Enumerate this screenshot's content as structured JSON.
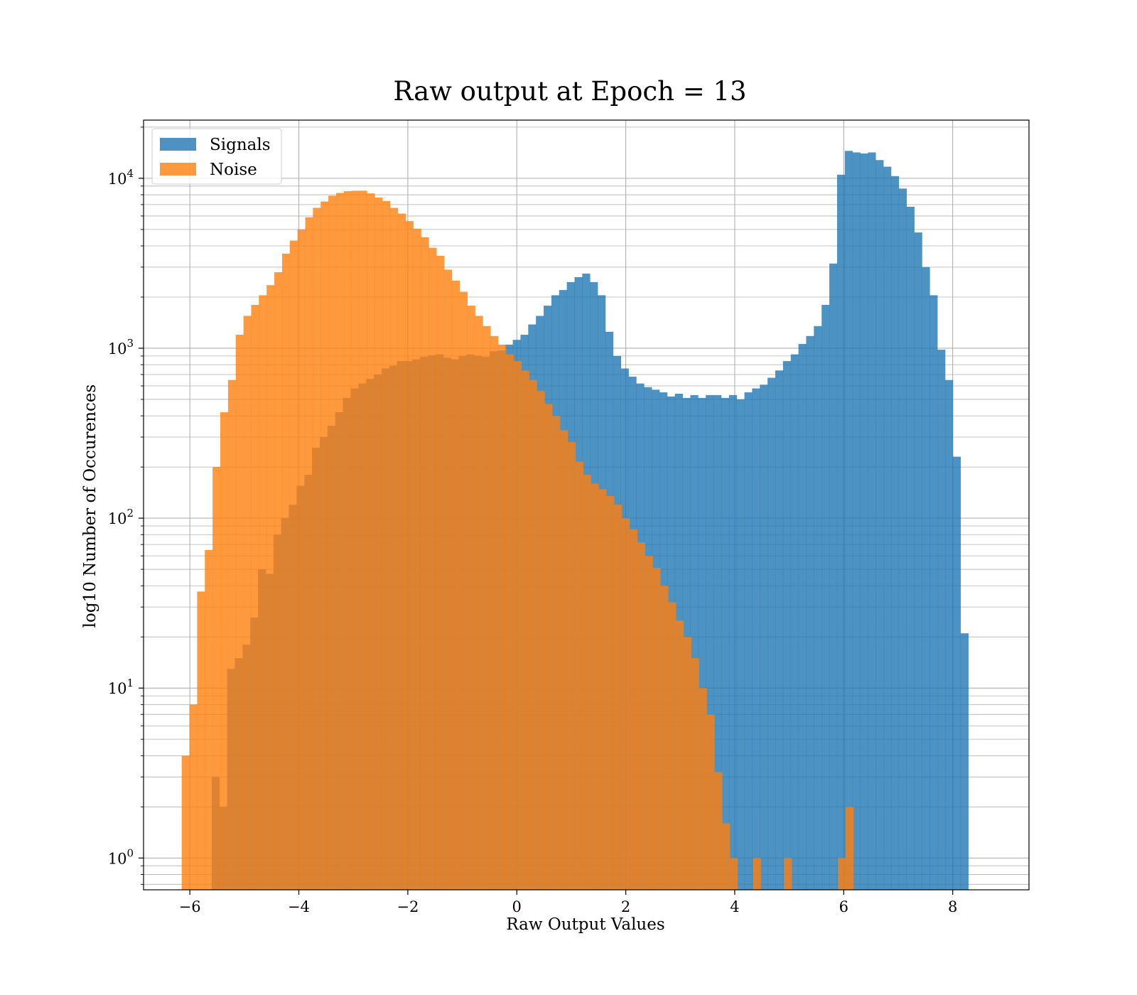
{
  "chart_data": {
    "type": "bar",
    "title": "Raw output at Epoch = 13",
    "xlabel": "Raw Output Values",
    "ylabel": "log10 Number of Occurences",
    "yscale": "log",
    "xlim": [
      -6.85,
      9.4
    ],
    "ylim": [
      0.65,
      22000
    ],
    "x_ticks": [
      -6,
      -4,
      -2,
      0,
      2,
      4,
      6,
      8
    ],
    "x_tick_labels": [
      "−6",
      "−4",
      "−2",
      "0",
      "2",
      "4",
      "6",
      "8"
    ],
    "y_ticks": [
      {
        "value": 1,
        "base": "10",
        "exp": "0"
      },
      {
        "value": 10,
        "base": "10",
        "exp": "1"
      },
      {
        "value": 100,
        "base": "10",
        "exp": "2"
      },
      {
        "value": 1000,
        "base": "10",
        "exp": "3"
      },
      {
        "value": 10000,
        "base": "10",
        "exp": "4"
      }
    ],
    "grid": true,
    "legend_position": "top-left",
    "series": [
      {
        "name": "Signals",
        "color": "#1f77b4",
        "opacity": 0.8,
        "bin_start": -5.6,
        "bin_width": 0.1417,
        "values": [
          3,
          2,
          13,
          15,
          18,
          26,
          50,
          47,
          80,
          100,
          120,
          155,
          180,
          260,
          300,
          350,
          420,
          510,
          580,
          620,
          660,
          700,
          760,
          790,
          840,
          840,
          860,
          890,
          910,
          920,
          880,
          860,
          900,
          920,
          905,
          890,
          960,
          970,
          1050,
          1120,
          1200,
          1380,
          1550,
          1780,
          2050,
          2200,
          2450,
          2620,
          2750,
          2450,
          2050,
          1250,
          900,
          760,
          680,
          620,
          590,
          570,
          550,
          520,
          540,
          510,
          530,
          510,
          530,
          530,
          510,
          530,
          500,
          550,
          580,
          610,
          670,
          740,
          840,
          920,
          1060,
          1180,
          1350,
          1800,
          3150,
          10500,
          14500,
          14200,
          14000,
          14200,
          12800,
          11700,
          10300,
          8700,
          6800,
          4800,
          3000,
          2050,
          980,
          650,
          230,
          21
        ]
      },
      {
        "name": "Noise",
        "color": "#ff7f0e",
        "opacity": 0.8,
        "bin_start": -6.15,
        "bin_width": 0.1417,
        "values": [
          4,
          8,
          37,
          65,
          200,
          420,
          650,
          1200,
          1550,
          1800,
          2050,
          2350,
          2800,
          3600,
          4300,
          5000,
          5900,
          6700,
          7300,
          7900,
          8200,
          8400,
          8450,
          8450,
          8150,
          7700,
          7350,
          6700,
          6200,
          5600,
          5050,
          4500,
          3900,
          3500,
          2900,
          2500,
          2150,
          1780,
          1550,
          1350,
          1180,
          1050,
          920,
          840,
          740,
          650,
          560,
          470,
          400,
          330,
          280,
          215,
          180,
          160,
          148,
          135,
          120,
          100,
          86,
          72,
          60,
          51,
          40,
          32,
          25,
          20,
          15,
          10,
          7,
          3.2,
          1.6,
          1,
          0,
          0,
          1,
          0,
          0,
          0,
          1,
          0,
          0,
          0,
          0,
          0,
          0,
          1,
          2
        ]
      }
    ]
  }
}
